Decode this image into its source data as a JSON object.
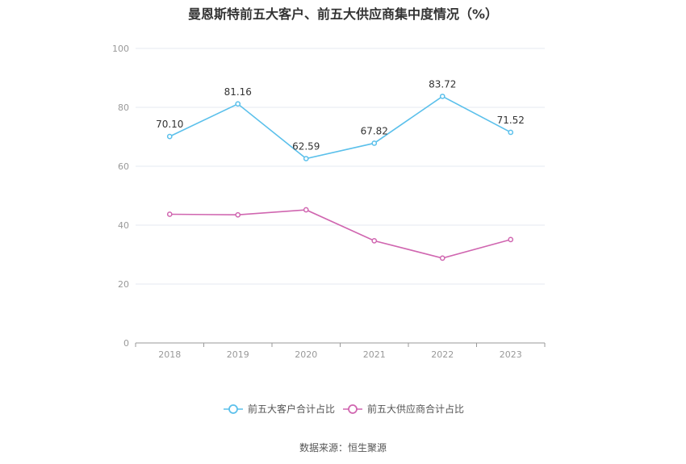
{
  "chart_data": {
    "type": "line",
    "title": "曼恩斯特前五大客户、前五大供应商集中度情况（%）",
    "categories": [
      "2018",
      "2019",
      "2020",
      "2021",
      "2022",
      "2023"
    ],
    "ylim": [
      0,
      100
    ],
    "yticks": [
      "0",
      "20",
      "40",
      "60",
      "80",
      "100"
    ],
    "grid": true,
    "legend_position": "bottom",
    "series": [
      {
        "name": "前五大客户合计占比",
        "values": [
          70.1,
          81.16,
          62.59,
          67.82,
          83.72,
          71.52
        ],
        "labels": [
          "70.10",
          "81.16",
          "62.59",
          "67.82",
          "83.72",
          "71.52"
        ],
        "color": "#5bc0eb"
      },
      {
        "name": "前五大供应商合计占比",
        "values": [
          43.7,
          43.5,
          45.2,
          34.7,
          28.8,
          35.1
        ],
        "color": "#d066b0"
      }
    ]
  },
  "source": "数据来源：恒生聚源"
}
